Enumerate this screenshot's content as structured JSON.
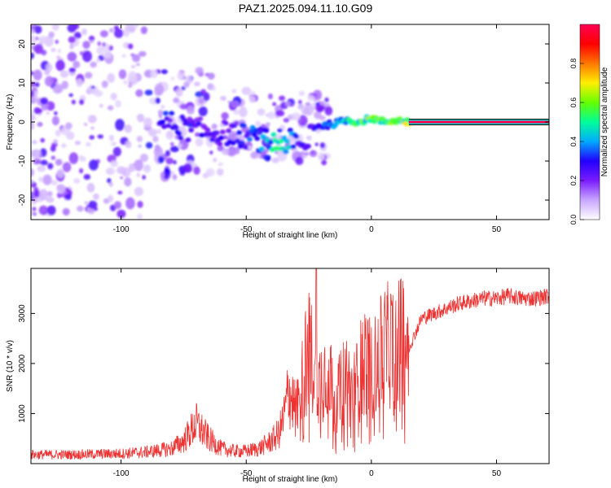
{
  "title": "PAZ1.2025.094.11.10.G09",
  "chart_data": [
    {
      "type": "heatmap",
      "xlabel": "Height of straight line (km)",
      "ylabel": "Frequency (Hz)",
      "xlim": [
        -136,
        71
      ],
      "ylim": [
        -25,
        25
      ],
      "xticks": [
        -100,
        -50,
        0,
        50
      ],
      "yticks": [
        -20,
        -10,
        0,
        10,
        20
      ],
      "colorbar": {
        "label": "Normalized spectral amplitude",
        "range": [
          0,
          1
        ],
        "ticks": [
          0.0,
          0.2,
          0.4,
          0.6,
          0.8
        ],
        "colors": [
          "#ffffff",
          "#c9a6ff",
          "#7a1cff",
          "#2200ff",
          "#00aaff",
          "#00ff99",
          "#66ff00",
          "#ffee00",
          "#ff7700",
          "#ff0000",
          "#ff0055"
        ]
      },
      "ridge": [
        {
          "x": -85,
          "y": 0.5,
          "amp": 0.3
        },
        {
          "x": -75,
          "y": -1.5,
          "amp": 0.25
        },
        {
          "x": -65,
          "y": -2.5,
          "amp": 0.25
        },
        {
          "x": -55,
          "y": -3,
          "amp": 0.25
        },
        {
          "x": -45,
          "y": -4.5,
          "amp": 0.35
        },
        {
          "x": -38,
          "y": -5.5,
          "amp": 0.45
        },
        {
          "x": -33,
          "y": -5,
          "amp": 0.4
        },
        {
          "x": -25,
          "y": -6.5,
          "amp": 0.2
        },
        {
          "x": -28,
          "y": -1.5,
          "amp": 0.2
        },
        {
          "x": -20,
          "y": -1,
          "amp": 0.3
        },
        {
          "x": -15,
          "y": -0.5,
          "amp": 0.45
        },
        {
          "x": -10,
          "y": 0.5,
          "amp": 0.5
        },
        {
          "x": -5,
          "y": 0,
          "amp": 0.55
        },
        {
          "x": 0,
          "y": 1,
          "amp": 0.55
        },
        {
          "x": 5,
          "y": 0,
          "amp": 0.5
        },
        {
          "x": 10,
          "y": 0.5,
          "amp": 0.55
        },
        {
          "x": 15,
          "y": 0,
          "amp": 0.65
        },
        {
          "x": 71,
          "y": 0,
          "amp": 1.0
        }
      ]
    },
    {
      "type": "line",
      "xlabel": "Height of straight line (km)",
      "ylabel": "SNR (10 * v/v)",
      "xlim": [
        -136,
        71
      ],
      "ylim": [
        0,
        3900
      ],
      "xticks": [
        -100,
        -50,
        0,
        50
      ],
      "yticks": [
        1000,
        2000,
        3000
      ],
      "color": "#ee3333",
      "series": [
        {
          "x": [
            -136,
            -120,
            -100,
            -90,
            -80,
            -75,
            -70,
            -65,
            -60,
            -55,
            -50,
            -45,
            -40,
            -37,
            -35,
            -33,
            -30,
            -27,
            -25,
            -22,
            -20,
            -17,
            -15,
            -12,
            -10,
            -8,
            -5,
            -3,
            0,
            3,
            5,
            8,
            10,
            13,
            15,
            20,
            25,
            30,
            35,
            40,
            45,
            50,
            55,
            60,
            65,
            71
          ],
          "y": [
            180,
            180,
            200,
            230,
            300,
            450,
            800,
            500,
            300,
            250,
            250,
            300,
            450,
            600,
            900,
            1500,
            1000,
            1800,
            2500,
            1500,
            1700,
            2000,
            1200,
            1500,
            1800,
            1400,
            1700,
            2200,
            1800,
            2100,
            2300,
            2400,
            2300,
            2600,
            2300,
            2900,
            3000,
            3100,
            3200,
            3250,
            3300,
            3300,
            3350,
            3300,
            3300,
            3350
          ]
        }
      ]
    }
  ]
}
